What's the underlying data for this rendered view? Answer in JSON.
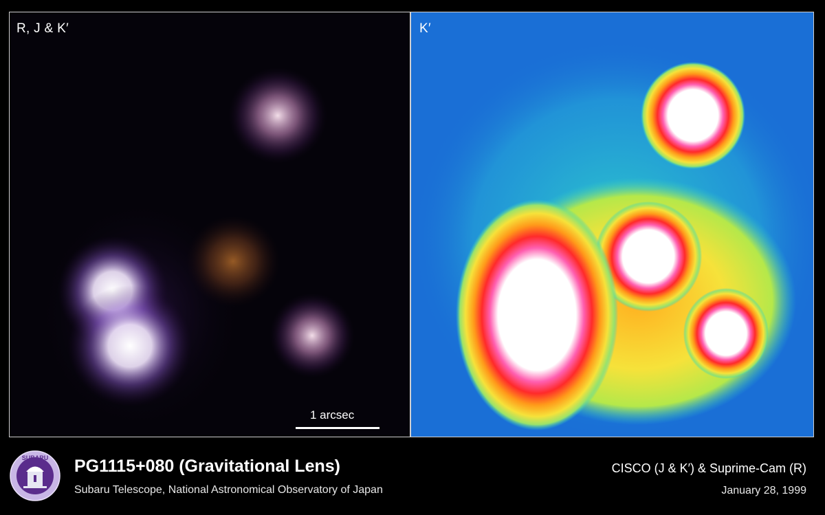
{
  "panels": {
    "left": {
      "label": "R, J & K′"
    },
    "right": {
      "label": "K′"
    }
  },
  "scale_bar": {
    "label": "1 arcsec"
  },
  "footer": {
    "title": "PG1115+080 (Gravitational Lens)",
    "subtitle": "Subaru Telescope, National Astronomical Observatory of Japan",
    "instrument": "CISCO (J & K′) & Suprime-Cam (R)",
    "date": "January 28, 1999"
  },
  "logo": {
    "text": "SUBARU",
    "icon": "subaru-telescope-seal"
  },
  "colors": {
    "background": "#000000",
    "kprime_background": "#1a6fd6",
    "kprime_halo": "#2fd3c9",
    "kprime_mid": "#f6e23a",
    "kprime_high": "#ff3b2a",
    "kprime_peak": "#ffffff"
  }
}
